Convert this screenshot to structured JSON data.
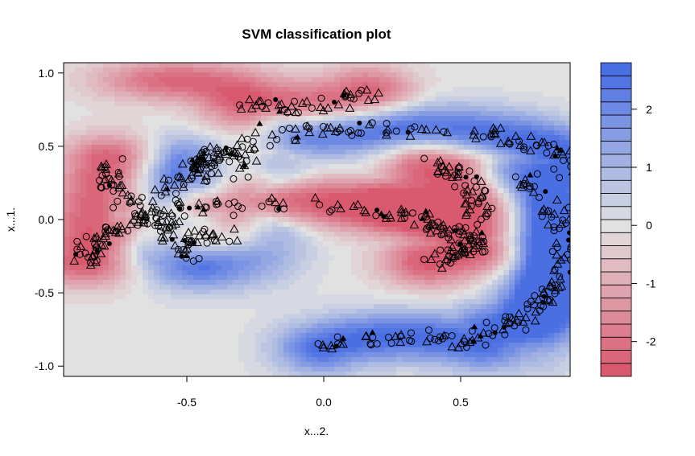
{
  "chart_data": {
    "type": "heatmap",
    "title": "SVM classification plot",
    "xlabel": "x...2.",
    "ylabel": "x...1.",
    "xlim": [
      -0.95,
      0.9
    ],
    "ylim": [
      -1.07,
      1.07
    ],
    "x_ticks": [
      -0.5,
      0.0,
      0.5
    ],
    "x_tick_labels": [
      "-0.5",
      "0.0",
      "0.5"
    ],
    "y_ticks": [
      1.0,
      0.5,
      0.0,
      -0.5,
      -1.0
    ],
    "y_tick_labels": [
      "1.0",
      "0.5",
      "0.0",
      "-0.5",
      "-1.0"
    ],
    "colorbar": {
      "range": [
        -2.6,
        2.8
      ],
      "levels": 24,
      "ticks": [
        2,
        1,
        0,
        -1,
        -2
      ],
      "tick_labels": [
        "2",
        "1",
        "0",
        "-1",
        "-2"
      ],
      "low_color": "#D9536A",
      "mid_color": "#E2E2E2",
      "high_color": "#4A6FE3"
    },
    "legend": "none",
    "grid": false,
    "series": [
      {
        "marker": "circle-open",
        "role": "data"
      },
      {
        "marker": "triangle-open",
        "role": "data"
      },
      {
        "marker": "circle-filled",
        "role": "support vector"
      },
      {
        "marker": "triangle-filled",
        "role": "support vector"
      }
    ]
  }
}
